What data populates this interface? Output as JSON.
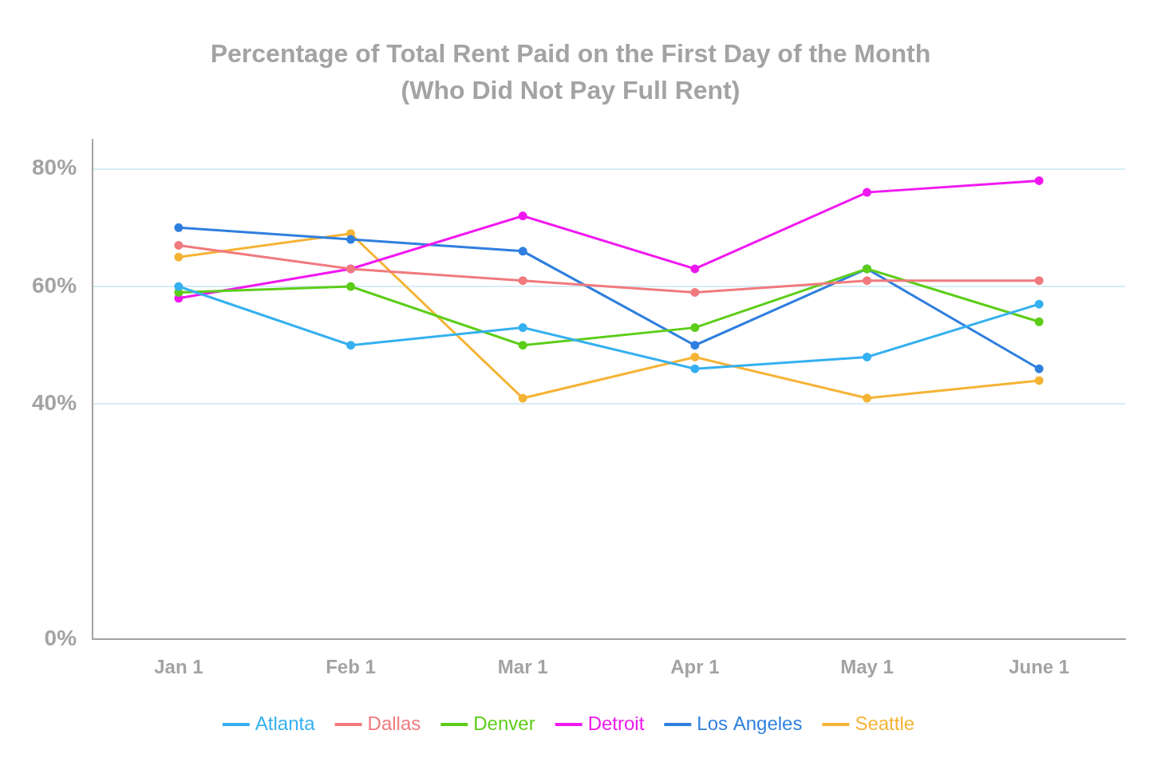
{
  "chart_data": {
    "type": "line",
    "title": "Percentage of Total Rent Paid on the First Day of the Month",
    "subtitle": "(Who Did Not Pay Full Rent)",
    "categories": [
      "Jan 1",
      "Feb 1",
      "Mar 1",
      "Apr 1",
      "May 1",
      "June 1"
    ],
    "series": [
      {
        "name": "Atlanta",
        "color": "#35b0f0",
        "values": [
          60,
          50,
          53,
          46,
          48,
          57
        ]
      },
      {
        "name": "Dallas",
        "color": "#f07a7e",
        "values": [
          67,
          63,
          61,
          59,
          61,
          61
        ]
      },
      {
        "name": "Denver",
        "color": "#5ccd18",
        "values": [
          59,
          60,
          50,
          53,
          63,
          54
        ]
      },
      {
        "name": "Detroit",
        "color": "#f018f0",
        "values": [
          58,
          63,
          72,
          63,
          76,
          78
        ]
      },
      {
        "name": "Los Angeles",
        "color": "#2f7fde",
        "values": [
          70,
          68,
          66,
          50,
          63,
          46
        ]
      },
      {
        "name": "Seattle",
        "color": "#f5b335",
        "values": [
          65,
          69,
          41,
          48,
          41,
          44
        ]
      }
    ],
    "ylim": [
      0,
      85
    ],
    "yticks": [
      {
        "value": 0,
        "label": "0%"
      },
      {
        "value": 40,
        "label": "40%"
      },
      {
        "value": 60,
        "label": "60%"
      },
      {
        "value": 80,
        "label": "80%"
      }
    ],
    "grid": true,
    "legend": "bottom",
    "marker": "circle"
  }
}
